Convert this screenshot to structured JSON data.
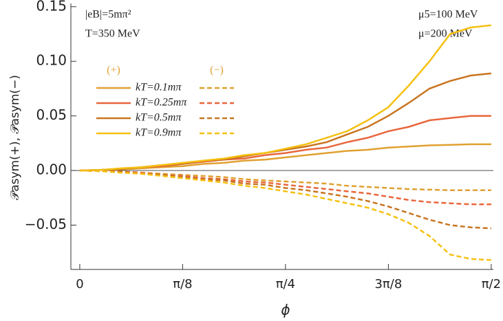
{
  "chart_data": {
    "type": "line",
    "x_label": "ϕ",
    "y_label": "𝒫asym(+), 𝒫asym(−)",
    "annotations": [
      "|eB|=5mπ²",
      "T=350 MeV",
      "μ5=100 MeV",
      "μ=200 MeV"
    ],
    "legend_headers": [
      "(+)",
      "(−)"
    ],
    "x": [
      0,
      0.0785,
      0.1571,
      0.2356,
      0.3142,
      0.3927,
      0.4712,
      0.5498,
      0.6283,
      0.7069,
      0.7854,
      0.8639,
      0.9425,
      1.021,
      1.0996,
      1.1781,
      1.2566,
      1.3352,
      1.4137,
      1.4923,
      1.5708
    ],
    "series": [
      {
        "name": "kT=0.1mπ",
        "color": "#e0a030",
        "values": [
          0,
          0.0005,
          0.001,
          0.002,
          0.003,
          0.004,
          0.006,
          0.007,
          0.009,
          0.01,
          0.012,
          0.014,
          0.016,
          0.018,
          0.019,
          0.021,
          0.022,
          0.023,
          0.0235,
          0.024,
          0.024
        ]
      },
      {
        "name": "kT=0.25mπ",
        "color": "#e8663c",
        "values": [
          0,
          0.0005,
          0.0015,
          0.003,
          0.004,
          0.006,
          0.008,
          0.01,
          0.011,
          0.014,
          0.016,
          0.019,
          0.021,
          0.026,
          0.03,
          0.036,
          0.04,
          0.046,
          0.048,
          0.05,
          0.05
        ]
      },
      {
        "name": "kT=0.5mπ",
        "color": "#c87420",
        "values": [
          0,
          0.0005,
          0.0015,
          0.003,
          0.005,
          0.006,
          0.009,
          0.01,
          0.013,
          0.016,
          0.019,
          0.022,
          0.026,
          0.033,
          0.04,
          0.05,
          0.062,
          0.075,
          0.082,
          0.087,
          0.089
        ]
      },
      {
        "name": "kT=0.9mπ",
        "color": "#f5c010",
        "values": [
          0,
          0.0005,
          0.002,
          0.003,
          0.005,
          0.007,
          0.009,
          0.011,
          0.014,
          0.016,
          0.02,
          0.024,
          0.03,
          0.036,
          0.046,
          0.058,
          0.078,
          0.1,
          0.125,
          0.131,
          0.133
        ]
      }
    ],
    "series_minus": [
      {
        "color": "#e0a030",
        "values": [
          0,
          -0.0004,
          -0.001,
          -0.002,
          -0.003,
          -0.004,
          -0.005,
          -0.006,
          -0.008,
          -0.009,
          -0.01,
          -0.011,
          -0.012,
          -0.014,
          -0.015,
          -0.016,
          -0.017,
          -0.0175,
          -0.018,
          -0.018,
          -0.018
        ]
      },
      {
        "color": "#e8663c",
        "values": [
          0,
          -0.0005,
          -0.001,
          -0.002,
          -0.004,
          -0.005,
          -0.007,
          -0.008,
          -0.01,
          -0.011,
          -0.013,
          -0.015,
          -0.017,
          -0.019,
          -0.021,
          -0.024,
          -0.027,
          -0.029,
          -0.03,
          -0.031,
          -0.031
        ]
      },
      {
        "color": "#c87420",
        "values": [
          0,
          -0.0005,
          -0.001,
          -0.003,
          -0.004,
          -0.006,
          -0.008,
          -0.009,
          -0.012,
          -0.013,
          -0.016,
          -0.018,
          -0.021,
          -0.024,
          -0.028,
          -0.033,
          -0.039,
          -0.045,
          -0.05,
          -0.052,
          -0.053
        ]
      },
      {
        "color": "#f5c010",
        "values": [
          0,
          -0.0005,
          -0.002,
          -0.003,
          -0.005,
          -0.007,
          -0.009,
          -0.011,
          -0.014,
          -0.016,
          -0.019,
          -0.022,
          -0.026,
          -0.03,
          -0.034,
          -0.04,
          -0.048,
          -0.06,
          -0.077,
          -0.081,
          -0.082
        ]
      }
    ],
    "xlim": [
      -0.034,
      1.579
    ],
    "ylim": [
      -0.0906,
      0.153
    ],
    "xticks": [
      {
        "value": 0,
        "label": "0"
      },
      {
        "value": 0.3927,
        "label": "π/8"
      },
      {
        "value": 0.7854,
        "label": "π/4"
      },
      {
        "value": 1.1781,
        "label": "3π/8"
      },
      {
        "value": 1.5708,
        "label": "π/2"
      }
    ],
    "yticks": [
      {
        "value": -0.05,
        "label": "−0.05"
      },
      {
        "value": 0,
        "label": "0.00"
      },
      0.05,
      {
        "value": 0.1,
        "label": "0.10"
      },
      0.15
    ]
  }
}
